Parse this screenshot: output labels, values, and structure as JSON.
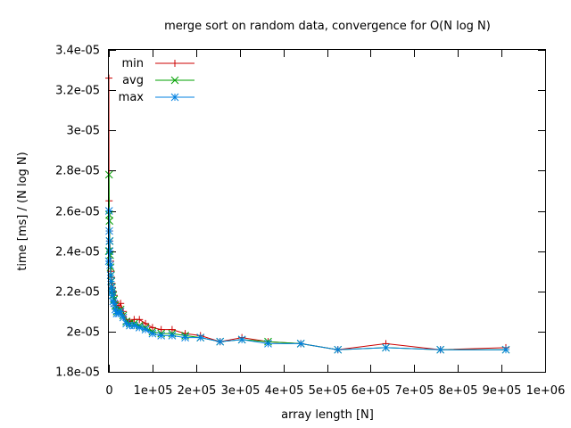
{
  "chart_data": {
    "type": "line",
    "title": "merge sort on random data, convergence for O(N log N)",
    "xlabel": "array length [N]",
    "ylabel": "time [ms] / (N log N)",
    "xlim": [
      0,
      1000000
    ],
    "ylim": [
      1.8e-05,
      3.4e-05
    ],
    "xticks": [
      0,
      100000,
      200000,
      300000,
      400000,
      500000,
      600000,
      700000,
      800000,
      900000,
      1000000
    ],
    "xtick_labels": [
      "0",
      "1e+05",
      "2e+05",
      "3e+05",
      "4e+05",
      "5e+05",
      "6e+05",
      "7e+05",
      "8e+05",
      "9e+05",
      "1e+06"
    ],
    "yticks": [
      1.8e-05,
      2e-05,
      2.2e-05,
      2.4e-05,
      2.6e-05,
      2.8e-05,
      3e-05,
      3.2e-05,
      3.4e-05
    ],
    "ytick_labels": [
      "1.8e-05",
      "2e-05",
      "2.2e-05",
      "2.4e-05",
      "2.6e-05",
      "2.8e-05",
      "3e-05",
      "3.2e-05",
      "3.4e-05"
    ],
    "grid": false,
    "legend_position": "top-left",
    "series": [
      {
        "name": "min",
        "color": "#cc0000",
        "marker": "plus",
        "x": [
          0,
          500,
          1000,
          1500,
          2000,
          3000,
          4000,
          5000,
          6000,
          7000,
          8000,
          10000,
          12000,
          15000,
          18000,
          22000,
          27000,
          33000,
          40000,
          48000,
          58000,
          70000,
          84000,
          100000,
          120000,
          145000,
          175000,
          210000,
          255000,
          305000,
          365000,
          440000,
          525000,
          635000,
          760000,
          910000
        ],
        "y": [
          3.26e-05,
          2.65e-05,
          2.6e-05,
          2.5e-05,
          2.45e-05,
          2.4e-05,
          2.35e-05,
          2.3e-05,
          2.27e-05,
          2.24e-05,
          2.22e-05,
          2.2e-05,
          2.18e-05,
          2.15e-05,
          2.13e-05,
          2.12e-05,
          2.14e-05,
          2.1e-05,
          2.06e-05,
          2.05e-05,
          2.06e-05,
          2.06e-05,
          2.04e-05,
          2.02e-05,
          2.01e-05,
          2.01e-05,
          1.99e-05,
          1.98e-05,
          1.95e-05,
          1.97e-05,
          1.95e-05,
          1.94e-05,
          1.91e-05,
          1.94e-05,
          1.91e-05,
          1.92e-05
        ]
      },
      {
        "name": "avg",
        "color": "#00a000",
        "marker": "cross",
        "x": [
          0,
          500,
          1000,
          1500,
          2000,
          3000,
          4000,
          5000,
          6000,
          7000,
          8000,
          10000,
          12000,
          15000,
          18000,
          22000,
          27000,
          33000,
          40000,
          48000,
          58000,
          70000,
          84000,
          100000,
          120000,
          145000,
          175000,
          210000,
          255000,
          305000,
          365000,
          440000,
          525000,
          635000,
          760000,
          910000
        ],
        "y": [
          2.4e-05,
          2.78e-05,
          2.58e-05,
          2.55e-05,
          2.45e-05,
          2.38e-05,
          2.32e-05,
          2.28e-05,
          2.25e-05,
          2.22e-05,
          2.2e-05,
          2.18e-05,
          2.16e-05,
          2.13e-05,
          2.1e-05,
          2.1e-05,
          2.11e-05,
          2.08e-05,
          2.05e-05,
          2.04e-05,
          2.04e-05,
          2.03e-05,
          2.02e-05,
          2e-05,
          1.99e-05,
          1.99e-05,
          1.98e-05,
          1.97e-05,
          1.95e-05,
          1.96e-05,
          1.95e-05,
          1.94e-05,
          1.91e-05,
          1.92e-05,
          1.91e-05,
          1.91e-05
        ]
      },
      {
        "name": "max",
        "color": "#0080e0",
        "marker": "star",
        "x": [
          0,
          500,
          1000,
          1500,
          2000,
          3000,
          4000,
          5000,
          6000,
          7000,
          8000,
          10000,
          12000,
          15000,
          18000,
          22000,
          27000,
          33000,
          40000,
          48000,
          58000,
          70000,
          84000,
          100000,
          120000,
          145000,
          175000,
          210000,
          255000,
          305000,
          365000,
          440000,
          525000,
          635000,
          760000,
          910000
        ],
        "y": [
          2.35e-05,
          2.6e-05,
          2.5e-05,
          2.45e-05,
          2.4e-05,
          2.33e-05,
          2.28e-05,
          2.25e-05,
          2.22e-05,
          2.2e-05,
          2.18e-05,
          2.15e-05,
          2.14e-05,
          2.11e-05,
          2.09e-05,
          2.09e-05,
          2.1e-05,
          2.07e-05,
          2.04e-05,
          2.03e-05,
          2.03e-05,
          2.02e-05,
          2.01e-05,
          1.99e-05,
          1.98e-05,
          1.98e-05,
          1.97e-05,
          1.97e-05,
          1.95e-05,
          1.96e-05,
          1.94e-05,
          1.94e-05,
          1.91e-05,
          1.92e-05,
          1.91e-05,
          1.91e-05
        ]
      }
    ]
  }
}
